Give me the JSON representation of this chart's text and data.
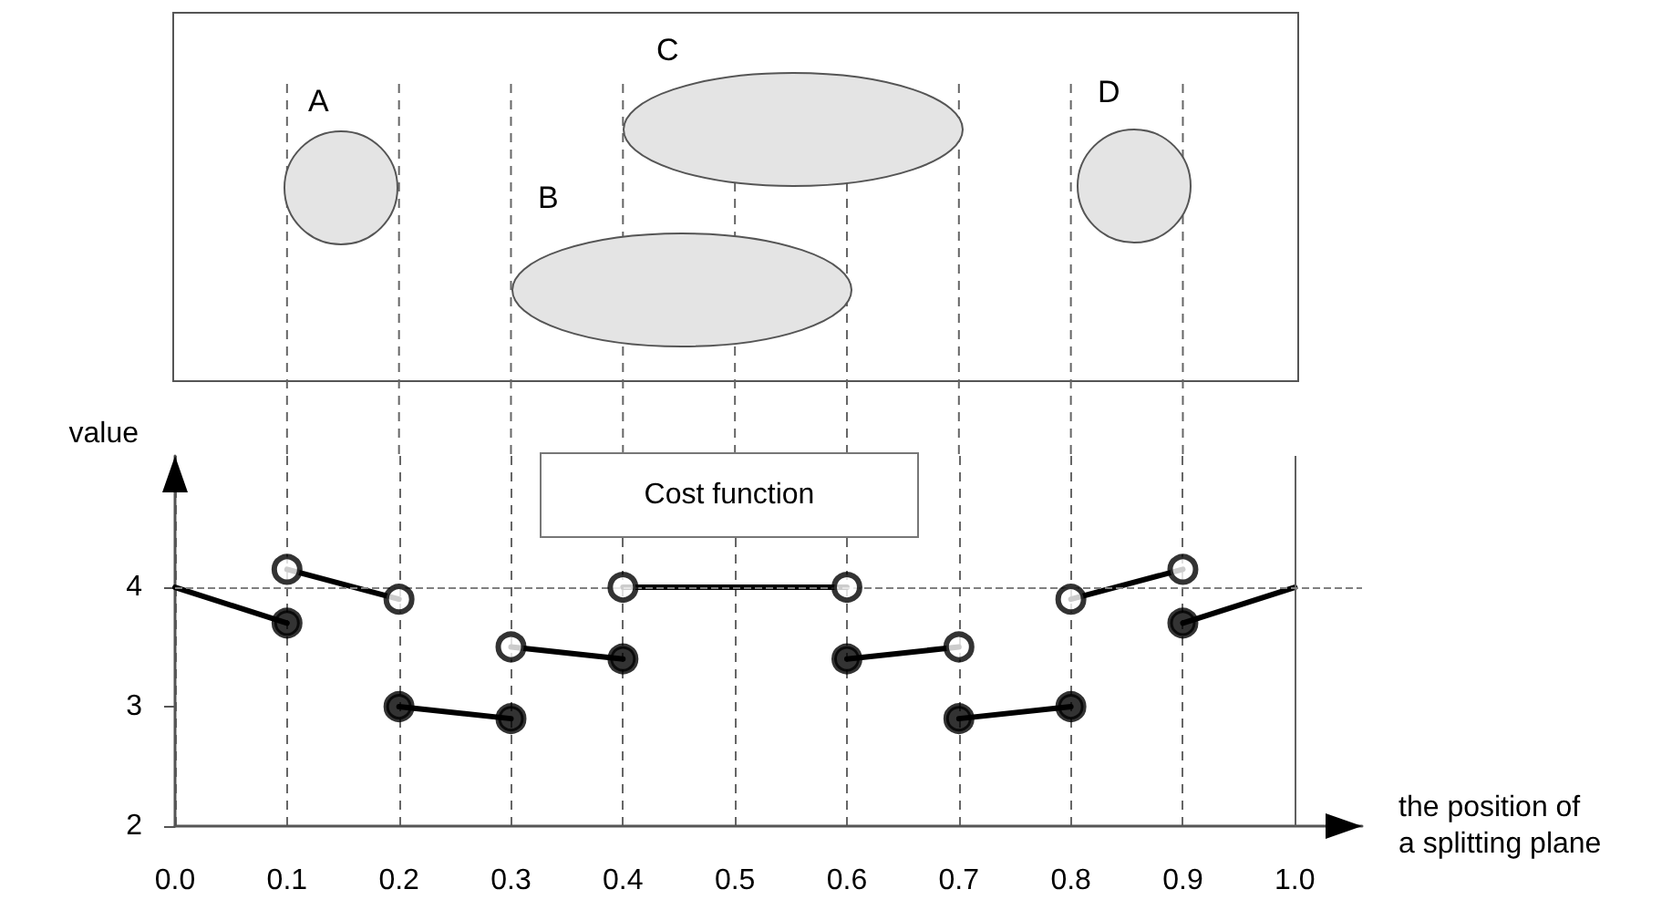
{
  "chart_data": {
    "type": "line",
    "xlabel": "the position of\na splitting plane",
    "ylabel": "value",
    "annotations": [
      "A",
      "B",
      "C",
      "D",
      "Cost function"
    ],
    "xlim": [
      0,
      1.06
    ],
    "ylim": [
      2,
      5.1
    ],
    "xticks": [
      {
        "value": 0,
        "label": "0.0"
      },
      0.1,
      0.2,
      0.3,
      0.4,
      0.5,
      0.6,
      0.7,
      0.8,
      0.9,
      {
        "value": 1,
        "label": "1.0"
      }
    ],
    "yticks": [
      2,
      3,
      4
    ],
    "grid": "x",
    "marker": "none",
    "line_style": "solid",
    "ref_lines": [
      {
        "axis": "y",
        "value": 4,
        "color": "#808080",
        "line_style": "dashed"
      },
      {
        "axis": "x",
        "value": 1,
        "color": "#606060",
        "line_style": "solid"
      }
    ],
    "series": [
      {
        "color": "#000000",
        "x": [
          0,
          0.1
        ],
        "values": [
          4.0,
          3.7
        ]
      },
      {
        "color": "#000000",
        "x": [
          0.1,
          0.2
        ],
        "values": [
          4.15,
          3.9
        ]
      },
      {
        "color": "#000000",
        "x": [
          0.2,
          0.3
        ],
        "values": [
          3.0,
          2.9
        ]
      },
      {
        "color": "#000000",
        "x": [
          0.3,
          0.4
        ],
        "values": [
          3.5,
          3.4
        ]
      },
      {
        "color": "#000000",
        "x": [
          0.4,
          0.6
        ],
        "values": [
          4.0,
          4.0
        ]
      },
      {
        "color": "#000000",
        "x": [
          0.6,
          0.7
        ],
        "values": [
          3.4,
          3.5
        ]
      },
      {
        "color": "#000000",
        "x": [
          0.7,
          0.8
        ],
        "values": [
          2.9,
          3.0
        ]
      },
      {
        "color": "#000000",
        "x": [
          0.8,
          0.9
        ],
        "values": [
          3.9,
          4.15
        ]
      },
      {
        "color": "#000000",
        "x": [
          0.9,
          1.0
        ],
        "values": [
          3.7,
          4.0
        ]
      },
      {
        "type": "scatter",
        "marker": "circle",
        "color": "#000000",
        "x": [
          0.1,
          0.2,
          0.3,
          0.4,
          0.6,
          0.7,
          0.8,
          0.9
        ],
        "values": [
          3.7,
          3.0,
          2.9,
          3.4,
          3.4,
          2.9,
          3.0,
          3.7
        ]
      },
      {
        "type": "scatter",
        "marker": "circle",
        "color": "#ffffff",
        "x": [
          0.1,
          0.2,
          0.3,
          0.4,
          0.6,
          0.7,
          0.8,
          0.9
        ],
        "values": [
          4.15,
          3.9,
          3.5,
          4.0,
          4.0,
          3.5,
          3.9,
          4.15
        ]
      }
    ]
  }
}
